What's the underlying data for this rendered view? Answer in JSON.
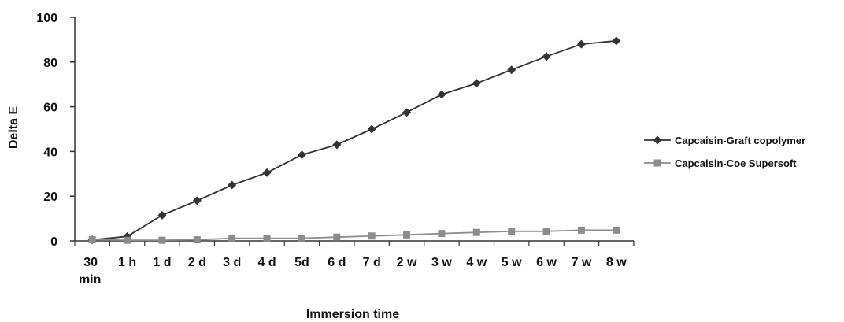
{
  "chart_data": {
    "type": "line",
    "title": "",
    "xlabel": "Immersion time",
    "ylabel": "Delta E",
    "ylim": [
      0,
      100
    ],
    "yticks": [
      0,
      20,
      40,
      60,
      80,
      100
    ],
    "grid": false,
    "legend_position": "right",
    "categories": [
      [
        "30",
        "min"
      ],
      [
        "1 h"
      ],
      [
        "1 d"
      ],
      [
        "2 d"
      ],
      [
        "3 d"
      ],
      [
        "4 d"
      ],
      [
        "5d"
      ],
      [
        "6 d"
      ],
      [
        "7 d"
      ],
      [
        "2 w"
      ],
      [
        "3 w"
      ],
      [
        "4 w"
      ],
      [
        "5 w"
      ],
      [
        "6 w"
      ],
      [
        "7 w"
      ],
      [
        "8 w"
      ]
    ],
    "series": [
      {
        "name": "Capcaisin-Graft copolymer",
        "marker": "diamond",
        "color": "#333333",
        "values": [
          0.5,
          2,
          11.5,
          18,
          25,
          30.5,
          38.5,
          43,
          50,
          57.5,
          65.5,
          70.5,
          76.5,
          82.5,
          88,
          89.5
        ]
      },
      {
        "name": "Capcaisin-Coe Supersoft",
        "marker": "square",
        "color": "#8c8c8c",
        "values": [
          0.5,
          0.3,
          0.3,
          0.5,
          1.2,
          1.2,
          1.2,
          1.7,
          2.2,
          2.7,
          3.3,
          3.8,
          4.3,
          4.3,
          4.8,
          4.8
        ]
      }
    ]
  }
}
